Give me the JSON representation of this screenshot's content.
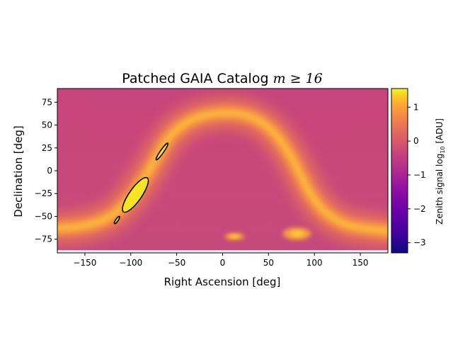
{
  "chart_data": {
    "type": "heatmap",
    "title": "Patched GAIA Catalog $m \\geq 16$",
    "title_text": "Patched GAIA Catalog",
    "title_math": "m ≥ 16",
    "xlabel": "Right Ascension [deg]",
    "ylabel": "Declination [deg]",
    "xlim": [
      -180,
      180
    ],
    "ylim": [
      -90,
      90
    ],
    "x_ticks": [
      -150,
      -100,
      -50,
      0,
      50,
      100,
      150
    ],
    "y_ticks": [
      -75,
      -50,
      -25,
      0,
      25,
      50,
      75
    ],
    "colorbar": {
      "label_prefix": "Zenith signal log",
      "label_sub": "10",
      "label_suffix": "[ADU]",
      "range": [
        -3.3,
        1.55
      ],
      "ticks": [
        1,
        0,
        -1,
        -2,
        -3
      ],
      "colormap": "plasma"
    },
    "galactic_plane_band": {
      "description": "bright arc of galactic plane",
      "points": [
        [
          -180,
          -63
        ],
        [
          -160,
          -62
        ],
        [
          -140,
          -58
        ],
        [
          -120,
          -50
        ],
        [
          -100,
          -30
        ],
        [
          -90,
          -15
        ],
        [
          -80,
          0
        ],
        [
          -70,
          18
        ],
        [
          -60,
          35
        ],
        [
          -45,
          50
        ],
        [
          -25,
          60
        ],
        [
          0,
          64
        ],
        [
          25,
          62
        ],
        [
          45,
          52
        ],
        [
          60,
          38
        ],
        [
          75,
          15
        ],
        [
          85,
          -5
        ],
        [
          95,
          -25
        ],
        [
          110,
          -45
        ],
        [
          130,
          -58
        ],
        [
          150,
          -63
        ],
        [
          180,
          -66
        ]
      ]
    },
    "bright_spots": [
      {
        "name": "LMC",
        "ra": 81,
        "dec": -69
      },
      {
        "name": "SMC",
        "ra": 13,
        "dec": -72
      }
    ],
    "contour_regions": [
      {
        "ra_range": [
          -110,
          -80
        ],
        "dec_range": [
          -45,
          -8
        ]
      },
      {
        "ra_range": [
          -70,
          -62
        ],
        "dec_range": [
          10,
          32
        ]
      },
      {
        "ra_range": [
          -118,
          -112
        ],
        "dec_range": [
          -58,
          -50
        ]
      }
    ]
  }
}
